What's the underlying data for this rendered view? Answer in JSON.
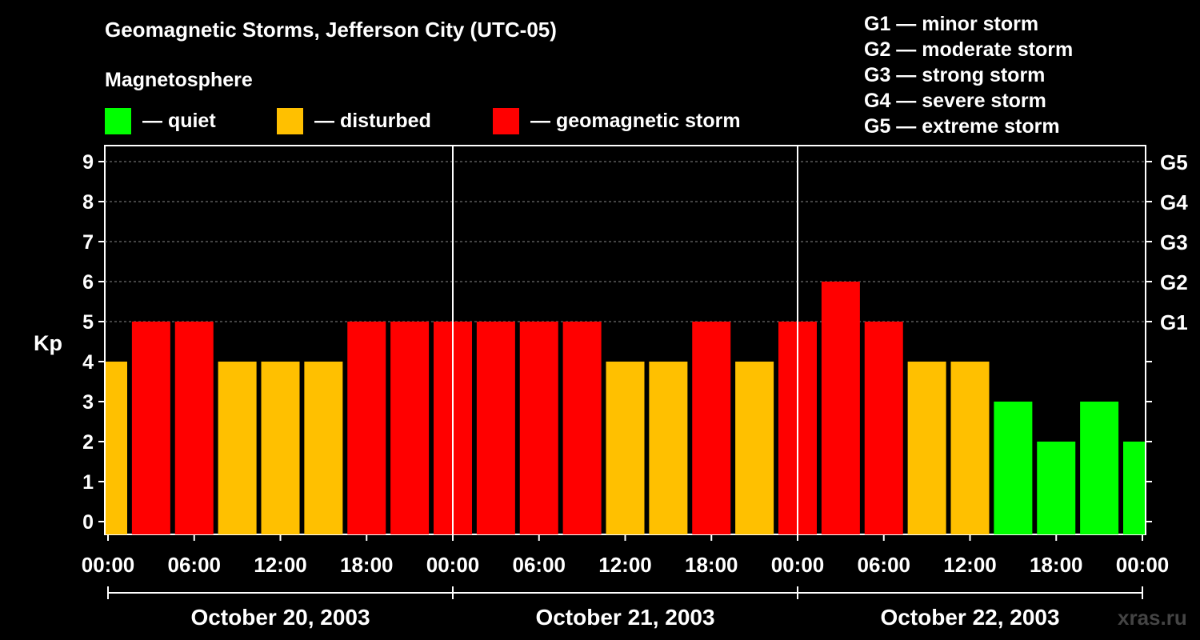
{
  "header": {
    "title": "Geomagnetic Storms, Jefferson City (UTC-05)",
    "subtitle": "Magnetosphere"
  },
  "legend": [
    {
      "label": "— quiet",
      "color": "#00ff00"
    },
    {
      "label": "— disturbed",
      "color": "#ffc000"
    },
    {
      "label": "— geomagnetic storm",
      "color": "#ff0000"
    }
  ],
  "storm_scale": [
    "G1 — minor storm",
    "G2 — moderate storm",
    "G3 — strong storm",
    "G4 — severe storm",
    "G5 — extreme storm"
  ],
  "watermark": "xras.ru",
  "colors": {
    "quiet": "#00ff00",
    "disturbed": "#ffc000",
    "storm": "#ff0000"
  },
  "chart_data": {
    "type": "bar",
    "title": "Geomagnetic Storms, Jefferson City (UTC-05)",
    "ylabel": "Kp",
    "ylim": [
      0,
      9
    ],
    "yticks": [
      "0",
      "1",
      "2",
      "3",
      "4",
      "5",
      "6",
      "7",
      "8",
      "9"
    ],
    "right_axis_labels": [
      {
        "kp": 5,
        "label": "G1"
      },
      {
        "kp": 6,
        "label": "G2"
      },
      {
        "kp": 7,
        "label": "G3"
      },
      {
        "kp": 8,
        "label": "G4"
      },
      {
        "kp": 9,
        "label": "G5"
      }
    ],
    "xticks": [
      "00:00",
      "06:00",
      "12:00",
      "18:00",
      "00:00",
      "06:00",
      "12:00",
      "18:00",
      "00:00",
      "06:00",
      "12:00",
      "18:00",
      "00:00"
    ],
    "dates": [
      "October 20, 2003",
      "October 21, 2003",
      "October 22, 2003"
    ],
    "x_hours_range": [
      0,
      72
    ],
    "bars": [
      {
        "hour": 0,
        "kp": 4,
        "level": "disturbed"
      },
      {
        "hour": 3,
        "kp": 5,
        "level": "storm"
      },
      {
        "hour": 6,
        "kp": 5,
        "level": "storm"
      },
      {
        "hour": 9,
        "kp": 4,
        "level": "disturbed"
      },
      {
        "hour": 12,
        "kp": 4,
        "level": "disturbed"
      },
      {
        "hour": 15,
        "kp": 4,
        "level": "disturbed"
      },
      {
        "hour": 18,
        "kp": 5,
        "level": "storm"
      },
      {
        "hour": 21,
        "kp": 5,
        "level": "storm"
      },
      {
        "hour": 24,
        "kp": 5,
        "level": "storm"
      },
      {
        "hour": 27,
        "kp": 5,
        "level": "storm"
      },
      {
        "hour": 30,
        "kp": 5,
        "level": "storm"
      },
      {
        "hour": 33,
        "kp": 5,
        "level": "storm"
      },
      {
        "hour": 36,
        "kp": 4,
        "level": "disturbed"
      },
      {
        "hour": 39,
        "kp": 4,
        "level": "disturbed"
      },
      {
        "hour": 42,
        "kp": 5,
        "level": "storm"
      },
      {
        "hour": 45,
        "kp": 4,
        "level": "disturbed"
      },
      {
        "hour": 48,
        "kp": 5,
        "level": "storm"
      },
      {
        "hour": 51,
        "kp": 6,
        "level": "storm"
      },
      {
        "hour": 54,
        "kp": 5,
        "level": "storm"
      },
      {
        "hour": 57,
        "kp": 4,
        "level": "disturbed"
      },
      {
        "hour": 60,
        "kp": 4,
        "level": "disturbed"
      },
      {
        "hour": 63,
        "kp": 3,
        "level": "quiet"
      },
      {
        "hour": 66,
        "kp": 2,
        "level": "quiet"
      },
      {
        "hour": 69,
        "kp": 3,
        "level": "quiet"
      },
      {
        "hour": 72,
        "kp": 2,
        "level": "quiet"
      }
    ]
  }
}
